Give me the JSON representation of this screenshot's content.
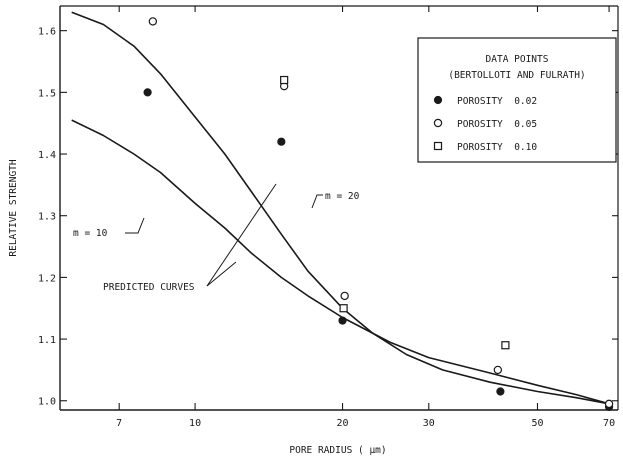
{
  "chart_data": {
    "type": "scatter",
    "xlabel": "PORE RADIUS ( μm)",
    "ylabel": "RELATIVE STRENGTH",
    "x_scale": "log",
    "xlim": [
      5.3,
      73
    ],
    "ylim": [
      0.985,
      1.64
    ],
    "x_ticks": [
      7,
      10,
      20,
      30,
      50,
      70
    ],
    "y_ticks": [
      1.0,
      1.1,
      1.2,
      1.3,
      1.4,
      1.5,
      1.6
    ],
    "y_tick_labels": [
      "1.0",
      "1.1",
      "1.2",
      "1.3",
      "1.4",
      "1.5",
      "1.6"
    ],
    "grid": false,
    "legend": {
      "position": "top-right",
      "title_line1": "DATA POINTS",
      "title_line2": "(BERTOLLOTI AND FULRATH)",
      "entries": [
        {
          "marker": "filled-circle",
          "label": "POROSITY  0.02"
        },
        {
          "marker": "open-circle",
          "label": "POROSITY  0.05"
        },
        {
          "marker": "open-square",
          "label": "POROSITY  0.10"
        }
      ]
    },
    "series": [
      {
        "name": "POROSITY  0.02",
        "marker": "filled-circle",
        "points": [
          [
            8,
            1.5
          ],
          [
            15,
            1.42
          ],
          [
            20,
            1.13
          ],
          [
            42,
            1.015
          ],
          [
            70,
            0.99
          ]
        ]
      },
      {
        "name": "POROSITY  0.05",
        "marker": "open-circle",
        "points": [
          [
            8.2,
            1.615
          ],
          [
            15.2,
            1.51
          ],
          [
            20.2,
            1.17
          ],
          [
            41.5,
            1.05
          ],
          [
            70,
            0.995
          ]
        ]
      },
      {
        "name": "POROSITY  0.10",
        "marker": "open-square",
        "points": [
          [
            15.2,
            1.52
          ],
          [
            20.1,
            1.15
          ],
          [
            43,
            1.09
          ]
        ]
      }
    ],
    "curves": [
      {
        "name": "m = 20",
        "points": [
          [
            5.6,
            1.63
          ],
          [
            6.5,
            1.61
          ],
          [
            7.5,
            1.575
          ],
          [
            8.5,
            1.53
          ],
          [
            10,
            1.46
          ],
          [
            11.5,
            1.4
          ],
          [
            13,
            1.34
          ],
          [
            15,
            1.27
          ],
          [
            17,
            1.21
          ],
          [
            20,
            1.15
          ],
          [
            23,
            1.11
          ],
          [
            27,
            1.075
          ],
          [
            32,
            1.05
          ],
          [
            40,
            1.03
          ],
          [
            50,
            1.015
          ],
          [
            60,
            1.005
          ],
          [
            70,
            0.995
          ]
        ]
      },
      {
        "name": "m = 10",
        "points": [
          [
            5.6,
            1.455
          ],
          [
            6.5,
            1.43
          ],
          [
            7.5,
            1.4
          ],
          [
            8.5,
            1.37
          ],
          [
            10,
            1.32
          ],
          [
            11.5,
            1.28
          ],
          [
            13,
            1.24
          ],
          [
            15,
            1.2
          ],
          [
            17,
            1.17
          ],
          [
            20,
            1.135
          ],
          [
            25,
            1.095
          ],
          [
            30,
            1.07
          ],
          [
            40,
            1.045
          ],
          [
            50,
            1.025
          ],
          [
            60,
            1.01
          ],
          [
            70,
            0.995
          ]
        ]
      }
    ],
    "annotations": {
      "m10": "m = 10",
      "m20": "m = 20",
      "predicted": "PREDICTED CURVES"
    },
    "colors": {
      "ink": "#1a1a1a",
      "background": "#ffffff"
    }
  }
}
